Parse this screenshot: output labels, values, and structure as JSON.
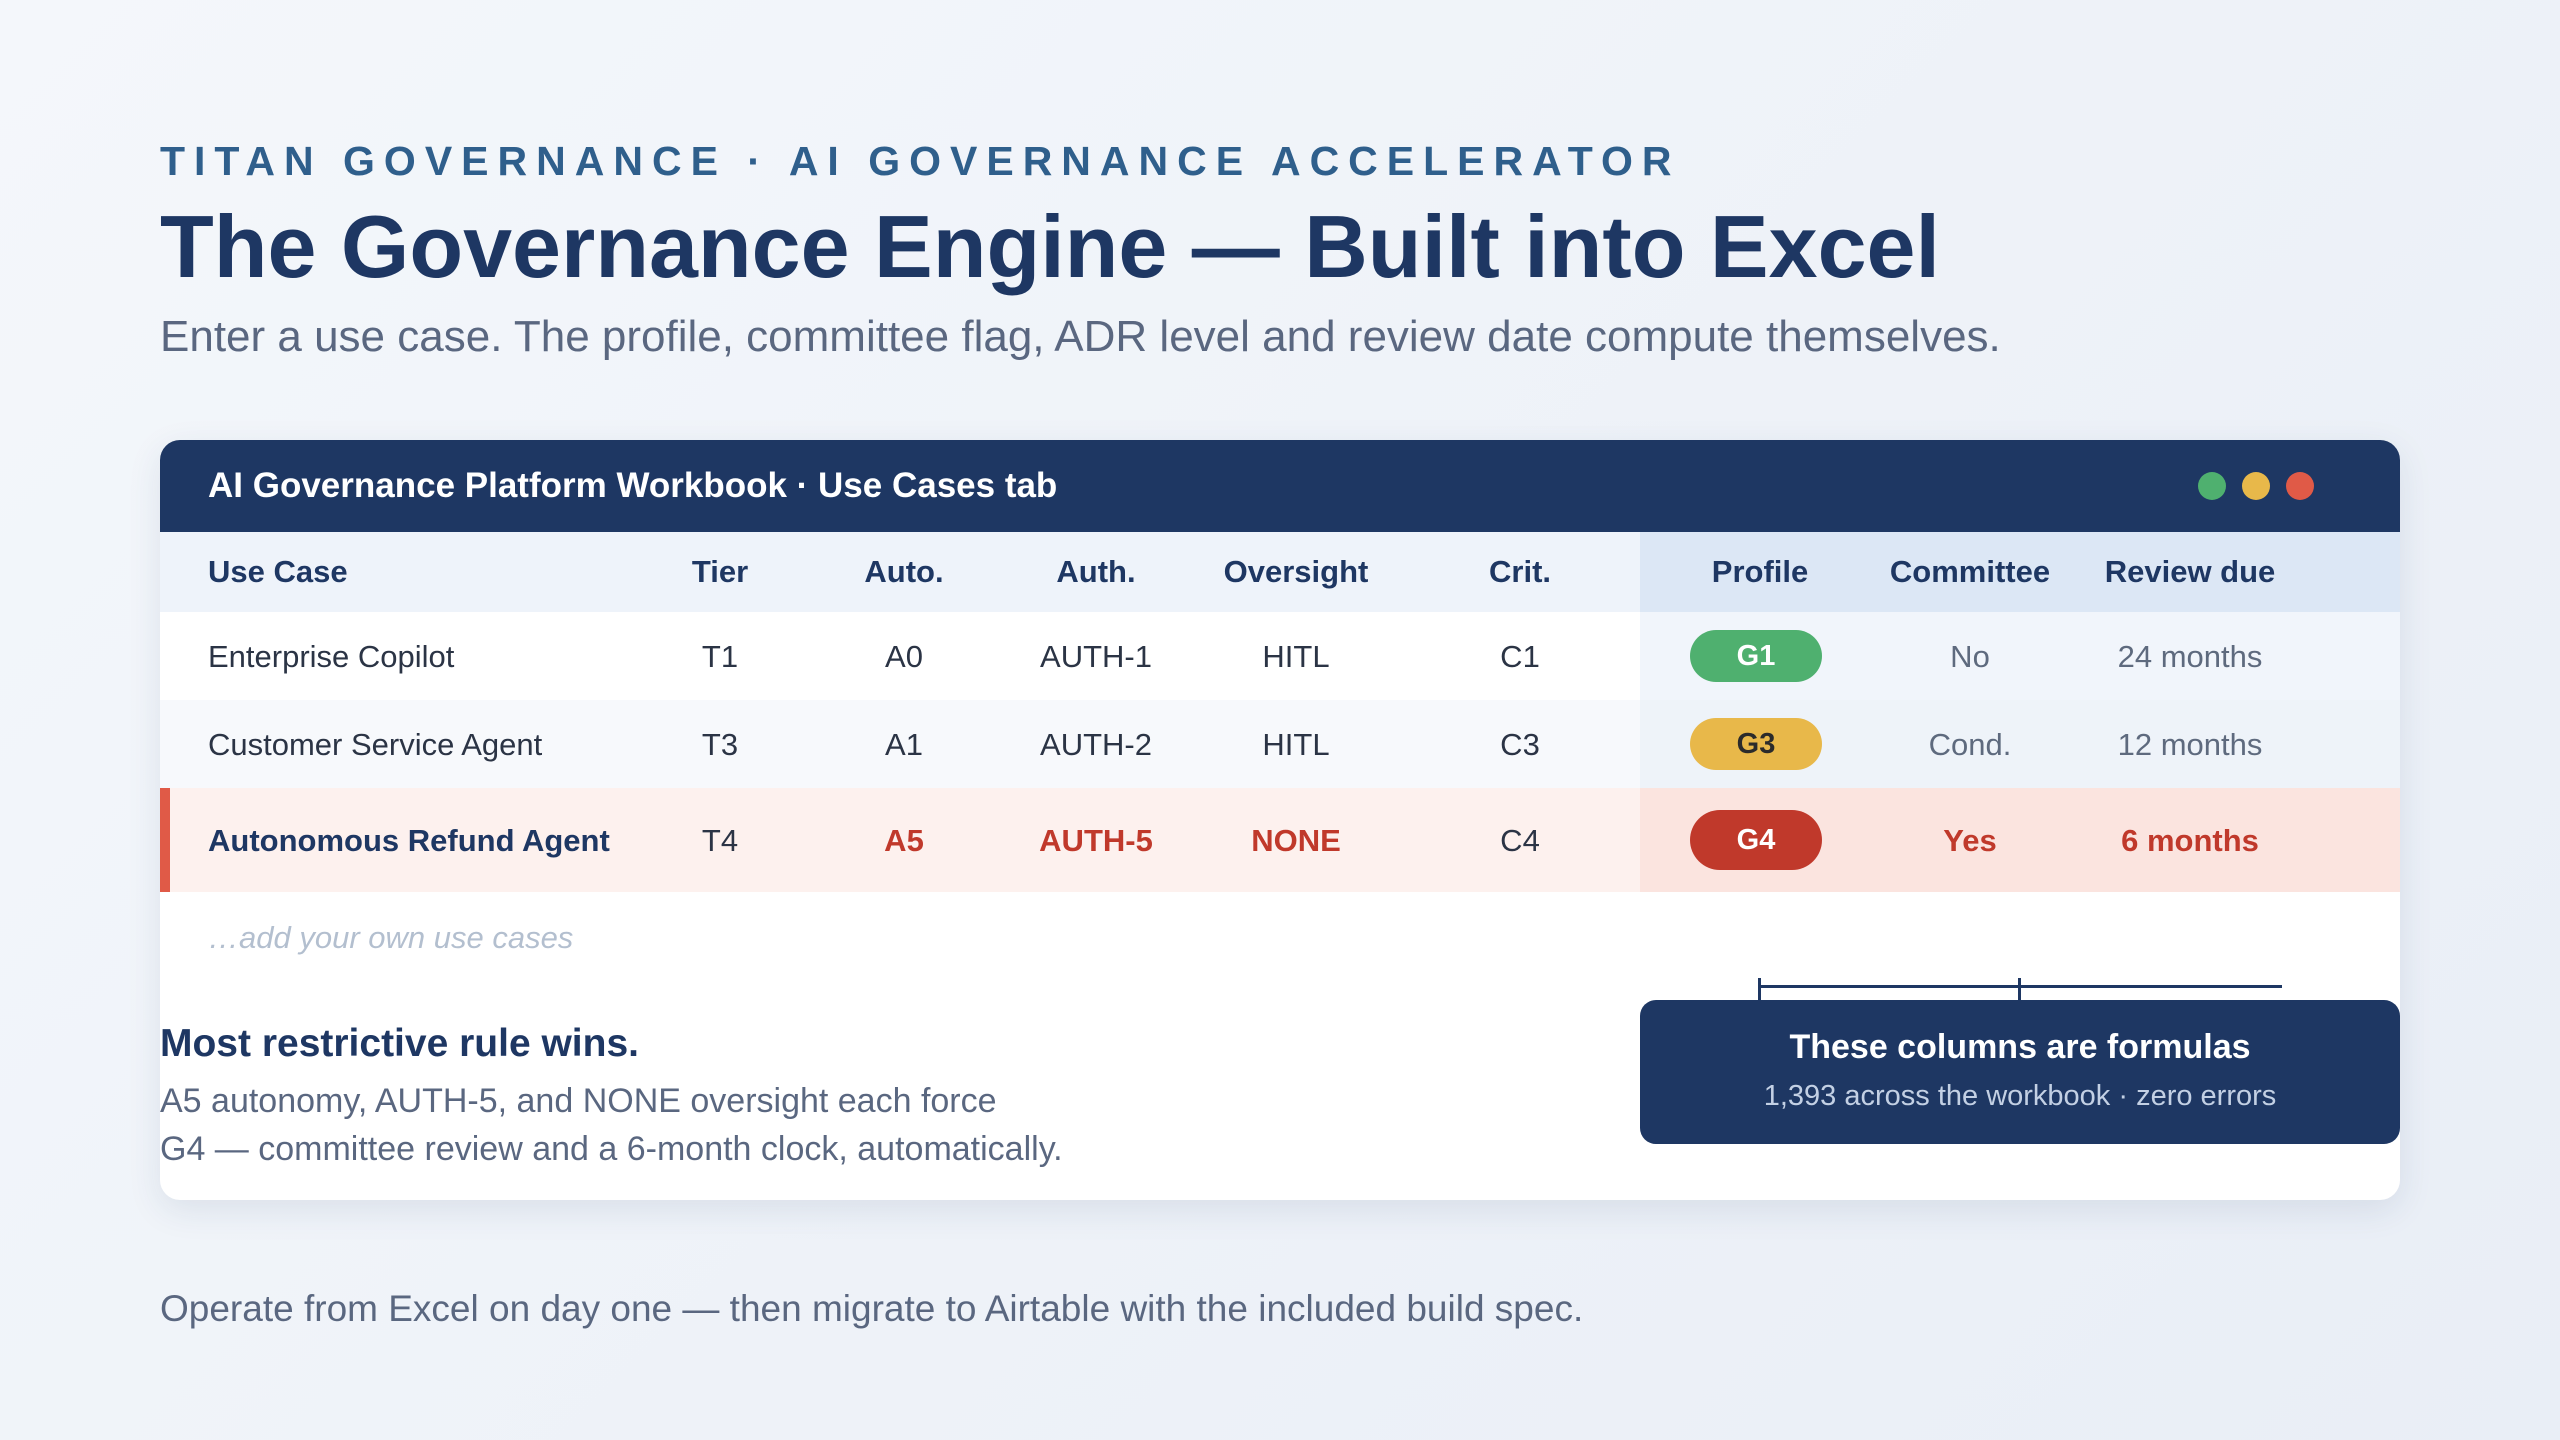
{
  "header": {
    "eyebrow": "TITAN GOVERNANCE · AI GOVERNANCE ACCELERATOR",
    "title": "The Governance Engine — Built into Excel",
    "subtitle": "Enter a use case. The profile, committee flag, ADR level and review date compute themselves."
  },
  "window": {
    "title": "AI Governance Platform Workbook · Use Cases tab",
    "controls": [
      "green-dot",
      "yellow-dot",
      "red-dot"
    ],
    "colors": {
      "green": "#4fb06f",
      "yellow": "#e8b84a",
      "red": "#e05a47"
    }
  },
  "table": {
    "columns": [
      "Use Case",
      "Tier",
      "Auto.",
      "Auth.",
      "Oversight",
      "Crit.",
      "Profile",
      "Committee",
      "Review due"
    ],
    "rows": [
      {
        "use_case": "Enterprise Copilot",
        "tier": "T1",
        "auto": "A0",
        "auth": "AUTH-1",
        "oversight": "HITL",
        "crit": "C1",
        "profile": "G1",
        "committee": "No",
        "review": "24 months"
      },
      {
        "use_case": "Customer Service Agent",
        "tier": "T3",
        "auto": "A1",
        "auth": "AUTH-2",
        "oversight": "HITL",
        "crit": "C3",
        "profile": "G3",
        "committee": "Cond.",
        "review": "12 months"
      },
      {
        "use_case": "Autonomous Refund Agent",
        "tier": "T4",
        "auto": "A5",
        "auth": "AUTH-5",
        "oversight": "NONE",
        "crit": "C4",
        "profile": "G4",
        "committee": "Yes",
        "review": "6 months"
      }
    ],
    "add_placeholder": "…add your own use cases",
    "profile_colors": {
      "G1": "#4fb06f",
      "G3": "#e8b84a",
      "G4": "#c0392b"
    }
  },
  "callout": {
    "title": "These columns are formulas",
    "subtitle": "1,393 across the workbook · zero errors"
  },
  "rule": {
    "title": "Most restrictive rule wins.",
    "line1": "A5 autonomy, AUTH-5, and NONE oversight each force",
    "line2": "G4 — committee review and a 6-month clock, automatically."
  },
  "footer": "Operate from Excel on day one — then migrate to Airtable with the included build spec."
}
